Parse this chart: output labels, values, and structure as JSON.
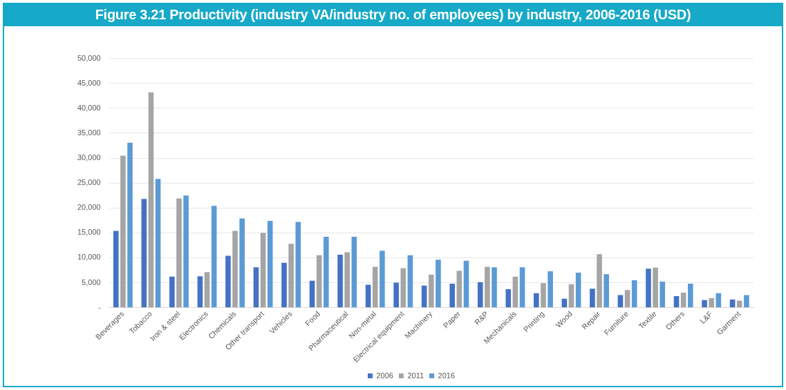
{
  "chart_data": {
    "type": "bar",
    "title": "Figure 3.21 Productivity (industry VA/industry no. of employees) by industry, 2006-2016 (USD)",
    "categories": [
      "Beverages",
      "Tobacco",
      "Iron & steel",
      "Electronics",
      "Chemicals",
      "Other transport",
      "Vehicles",
      "Food",
      "Pharmaceutical",
      "Non-metal",
      "Electrical equipment",
      "Machinery",
      "Paper",
      "R&P",
      "Mechanicals",
      "Printing",
      "Wood",
      "Repair",
      "Furniture",
      "Textile",
      "Others",
      "L&F",
      "Garment"
    ],
    "series": [
      {
        "name": "2006",
        "color": "#4472c4",
        "values": [
          15400,
          21800,
          6200,
          6300,
          10400,
          8100,
          9000,
          5400,
          10600,
          4600,
          5000,
          4400,
          4800,
          5100,
          3700,
          2900,
          1800,
          3800,
          2500,
          7800,
          2300,
          1500,
          1600
        ]
      },
      {
        "name": "2011",
        "color": "#a5a5a5",
        "values": [
          30500,
          43200,
          21900,
          7100,
          15400,
          15000,
          12800,
          10500,
          11100,
          8200,
          7900,
          6600,
          7400,
          8200,
          6200,
          4900,
          4700,
          10700,
          3500,
          8000,
          3000,
          1900,
          1400
        ]
      },
      {
        "name": "2016",
        "color": "#5b9bd5",
        "values": [
          33100,
          25800,
          22500,
          20400,
          17900,
          17400,
          17200,
          14200,
          14200,
          11400,
          10500,
          9600,
          9400,
          8100,
          8100,
          7300,
          7000,
          6700,
          5500,
          5200,
          4800,
          2900,
          2500
        ]
      }
    ],
    "ylim": [
      0,
      50000
    ],
    "yticks": [
      {
        "value": 0,
        "label": "-"
      },
      {
        "value": 5000,
        "label": "5,000"
      },
      {
        "value": 10000,
        "label": "10,000"
      },
      {
        "value": 15000,
        "label": "15,000"
      },
      {
        "value": 20000,
        "label": "20,000"
      },
      {
        "value": 25000,
        "label": "25,000"
      },
      {
        "value": 30000,
        "label": "30,000"
      },
      {
        "value": 35000,
        "label": "35,000"
      },
      {
        "value": 40000,
        "label": "40,000"
      },
      {
        "value": 45000,
        "label": "45,000"
      },
      {
        "value": 50000,
        "label": "50,000"
      }
    ],
    "grid": "y",
    "legend": "bottom"
  }
}
